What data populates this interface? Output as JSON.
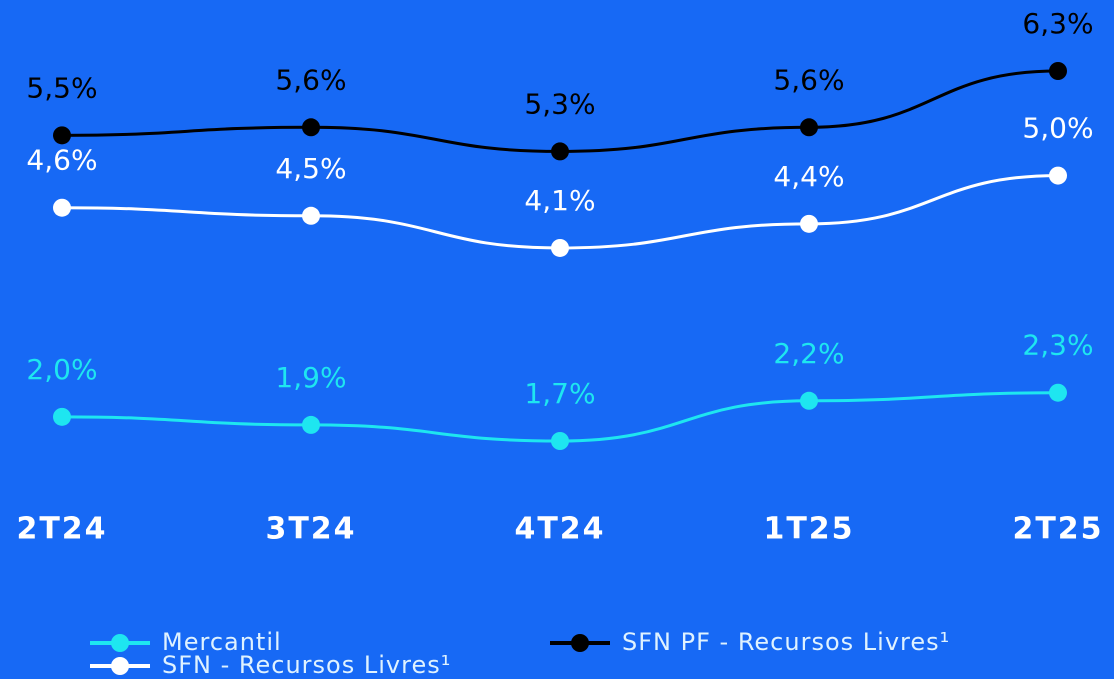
{
  "chart_data": {
    "type": "line",
    "categories": [
      "2T24",
      "3T24",
      "4T24",
      "1T25",
      "2T25"
    ],
    "series": [
      {
        "name": "Mercantil",
        "color": "#1ee6f0",
        "values": [
          2.0,
          1.9,
          1.7,
          2.2,
          2.3
        ],
        "value_labels": [
          "2,0%",
          "1,9%",
          "1,7%",
          "2,2%",
          "2,3%"
        ]
      },
      {
        "name": "SFN PF - Recursos Livres¹",
        "color": "#000000",
        "values": [
          5.5,
          5.6,
          5.3,
          5.6,
          6.3
        ],
        "value_labels": [
          "5,5%",
          "5,6%",
          "5,3%",
          "5,6%",
          "6,3%"
        ]
      },
      {
        "name": "SFN - Recursos Livres¹",
        "color": "#ffffff",
        "values": [
          4.6,
          4.5,
          4.1,
          4.4,
          5.0
        ],
        "value_labels": [
          "4,6%",
          "4,5%",
          "4,1%",
          "4,4%",
          "5,0%"
        ]
      }
    ]
  }
}
